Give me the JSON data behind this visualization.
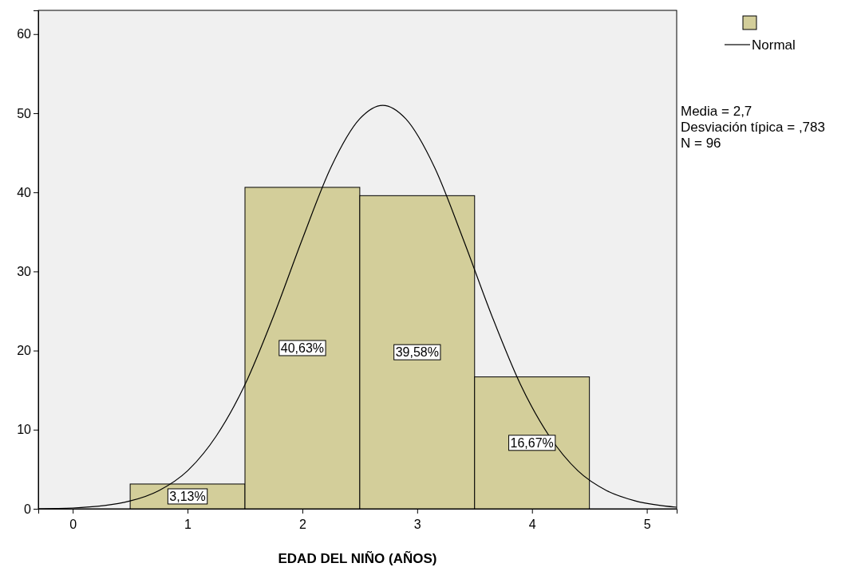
{
  "chart_data": {
    "type": "histogram",
    "xlabel": "EDAD DEL NIÑO (AÑOS)",
    "bins": [
      0.5,
      1.5,
      2.5,
      3.5,
      4.5
    ],
    "xlim": [
      -0.3,
      5.26
    ],
    "xticks": [
      0,
      1,
      2,
      3,
      4,
      5
    ],
    "ylim": [
      0,
      63
    ],
    "yticks": [
      0,
      10,
      20,
      30,
      40,
      50,
      60
    ],
    "grid": false,
    "legend": "top right",
    "series": [
      {
        "color": "#d3ce9a",
        "values": [
          3.13,
          40.63,
          39.58,
          16.67
        ],
        "value_labels": [
          "3,13%",
          "40,63%",
          "39,58%",
          "16,67%"
        ]
      },
      {
        "name": "Normal",
        "type": "line",
        "color": "#000000",
        "x": [
          -0.3,
          0,
          0.5,
          0.75,
          1,
          1.25,
          1.5,
          1.75,
          2,
          2.25,
          2.5,
          2.7,
          2.9,
          3.15,
          3.4,
          3.65,
          3.9,
          4.15,
          4.4,
          4.65,
          4.9,
          5.26
        ],
        "values": [
          0,
          0.1,
          1,
          2.3,
          4.8,
          9.2,
          15.7,
          24.4,
          34.1,
          43.2,
          49.3,
          51,
          49.3,
          43.2,
          34.1,
          24.4,
          15.7,
          9.2,
          4.8,
          2.3,
          1,
          0.2
        ]
      }
    ],
    "annotations": [
      "Media = 2,7",
      "Desviación típica = ,783",
      "N = 96"
    ]
  }
}
